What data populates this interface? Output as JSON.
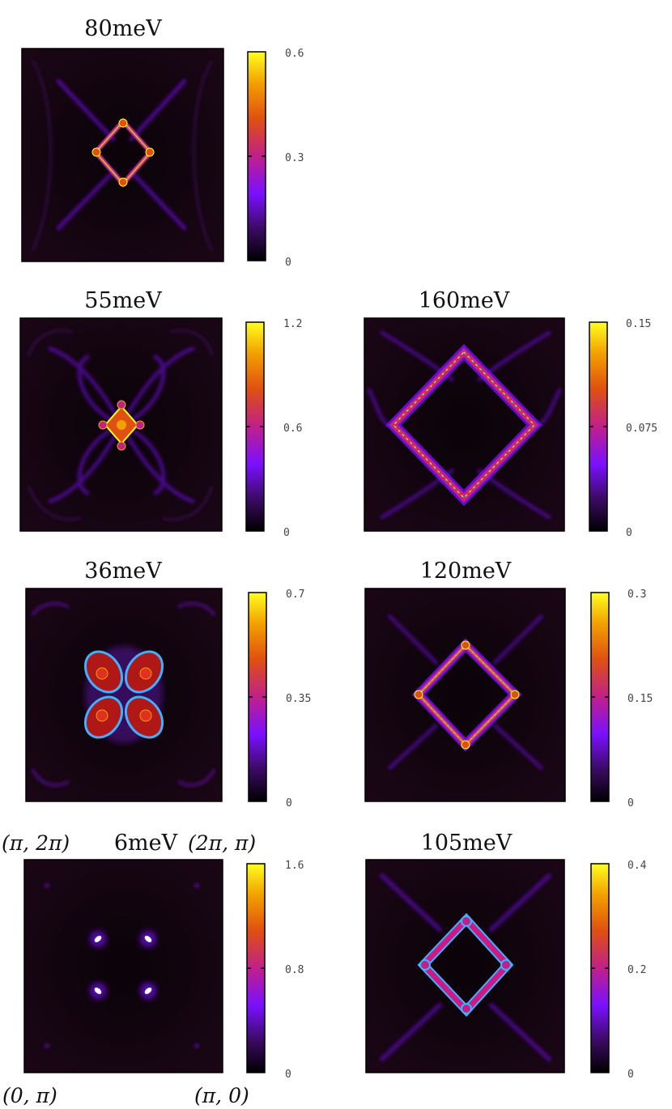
{
  "chart_data": [
    {
      "type": "heatmap",
      "title": "80meV",
      "colorbar": {
        "min": 0,
        "max": 0.6,
        "ticks": [
          "0.6",
          "0.3",
          "0"
        ]
      },
      "pattern": "small-diamond-with-arms",
      "colorscale": [
        "#000000",
        "#3a0a60",
        "#7a10ff",
        "#c0208a",
        "#e05010",
        "#f2a000",
        "#ffff20"
      ]
    },
    {
      "type": "heatmap",
      "title": "55meV",
      "colorbar": {
        "min": 0,
        "max": 1.2,
        "ticks": [
          "1.2",
          "0.6",
          "0"
        ]
      },
      "pattern": "central-star-with-lobes",
      "colorscale": [
        "#000000",
        "#3a0a60",
        "#7a10ff",
        "#c0208a",
        "#e05010",
        "#f2a000",
        "#ffff20"
      ]
    },
    {
      "type": "heatmap",
      "title": "160meV",
      "colorbar": {
        "min": 0,
        "max": 0.15,
        "ticks": [
          "0.15",
          "0.075",
          "0"
        ]
      },
      "pattern": "large-diamond",
      "colorscale": [
        "#000000",
        "#3a0a60",
        "#7a10ff",
        "#c0208a",
        "#e05010",
        "#f2a000",
        "#ffff20"
      ]
    },
    {
      "type": "heatmap",
      "title": "36meV",
      "colorbar": {
        "min": 0,
        "max": 0.7,
        "ticks": [
          "0.7",
          "0.35",
          "0"
        ]
      },
      "pattern": "four-petal",
      "colorscale": [
        "#000000",
        "#3a0a60",
        "#7a10ff",
        "#c0208a",
        "#e05010",
        "#f2a000",
        "#ffff20"
      ]
    },
    {
      "type": "heatmap",
      "title": "120meV",
      "colorbar": {
        "min": 0,
        "max": 0.3,
        "ticks": [
          "0.3",
          "0.15",
          "0"
        ]
      },
      "pattern": "medium-diamond",
      "colorscale": [
        "#000000",
        "#3a0a60",
        "#7a10ff",
        "#c0208a",
        "#e05010",
        "#f2a000",
        "#ffff20"
      ]
    },
    {
      "type": "heatmap",
      "title": "6meV",
      "colorbar": {
        "min": 0,
        "max": 1.6,
        "ticks": [
          "1.6",
          "0.8",
          "0"
        ]
      },
      "pattern": "four-dots",
      "corner_labels": {
        "top_left": "(π, 2π)",
        "top_right": "(2π, π)",
        "bottom_left": "(0, π)",
        "bottom_right": "(π, 0)"
      },
      "colorscale": [
        "#000000",
        "#3a0a60",
        "#7a10ff",
        "#c0208a",
        "#e05010",
        "#f2a000",
        "#ffff20"
      ]
    },
    {
      "type": "heatmap",
      "title": "105meV",
      "colorbar": {
        "min": 0,
        "max": 0.4,
        "ticks": [
          "0.4",
          "0.2",
          "0"
        ]
      },
      "pattern": "medium-diamond-blue",
      "colorscale": [
        "#000000",
        "#3a0a60",
        "#7a10ff",
        "#c0208a",
        "#e05010",
        "#f2a000",
        "#ffff20"
      ]
    }
  ]
}
